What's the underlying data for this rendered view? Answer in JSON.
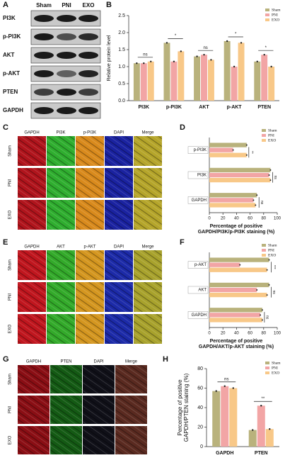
{
  "panel_labels": [
    "A",
    "B",
    "C",
    "D",
    "E",
    "F",
    "G",
    "H"
  ],
  "blot": {
    "lanes": [
      "Sham",
      "PNI",
      "EXO"
    ],
    "rows": [
      "PI3K",
      "p-PI3K",
      "AKT",
      "p-AKT",
      "PTEN",
      "GAPDH"
    ]
  },
  "micro": [
    {
      "columns": [
        "GAPDH",
        "PI3K",
        "p-PI3K",
        "DAPI",
        "Merge"
      ],
      "rows": [
        "Sham",
        "PNI",
        "EXO"
      ]
    },
    {
      "columns": [
        "GAPDH",
        "AKT",
        "p-AKT",
        "DAPI",
        "Merge"
      ],
      "rows": [
        "Sham",
        "PNI",
        "EXO"
      ]
    },
    {
      "columns": [
        "GAPDH",
        "PTEN",
        "DAPI",
        "Merge"
      ],
      "rows": [
        "Sham",
        "PNI",
        "EXO"
      ]
    }
  ],
  "chart_data": [
    {
      "type": "bar",
      "ylabel": [
        "Relative protein level"
      ],
      "categories": [
        "PI3K",
        "p-PI3K",
        "AKT",
        "p-AKT",
        "PTEN"
      ],
      "series": [
        {
          "name": "Sham",
          "color": "#b9b27c",
          "values": [
            1.1,
            1.7,
            1.3,
            1.75,
            1.15
          ]
        },
        {
          "name": "PNI",
          "color": "#f2a5a5",
          "values": [
            1.1,
            1.15,
            1.35,
            1.0,
            1.35
          ]
        },
        {
          "name": "EXO",
          "color": "#f8c888",
          "values": [
            1.15,
            1.45,
            1.2,
            1.7,
            1.0
          ]
        }
      ],
      "annotations": [
        "ns",
        "*",
        "ns",
        "*",
        "*"
      ],
      "ylim": [
        0,
        2.5
      ],
      "yticks": [
        {
          "value": 0,
          "label": "0.0"
        },
        0.5,
        {
          "value": 1,
          "label": "1.0"
        },
        1.5,
        {
          "value": 2,
          "label": "2.0"
        },
        2.5
      ]
    },
    {
      "type": "barh",
      "xlabel": [
        "Percentage of positive",
        "GAPDH/PI3K/p-PI3K staining (%)"
      ],
      "categories": [
        "p-PI3K",
        "PI3K",
        "GAPDH"
      ],
      "series": [
        {
          "name": "Sham",
          "color": "#b9b27c",
          "values": [
            55,
            90,
            70
          ]
        },
        {
          "name": "PNI",
          "color": "#f2a5a5",
          "values": [
            35,
            88,
            65
          ]
        },
        {
          "name": "EXO",
          "color": "#f8c888",
          "values": [
            55,
            90,
            68
          ]
        }
      ],
      "annotations": [
        "**",
        "ns",
        "ns"
      ],
      "xlim": [
        0,
        100
      ],
      "xticks": [
        0,
        20,
        40,
        60,
        80,
        100
      ]
    },
    {
      "type": "barh",
      "xlabel": [
        "Percentage of positive",
        "GAPDH/AKT/p-AKT staining (%)"
      ],
      "categories": [
        "p-AKT",
        "AKT",
        "GAPDH"
      ],
      "series": [
        {
          "name": "Sham",
          "color": "#b9b27c",
          "values": [
            88,
            88,
            78
          ]
        },
        {
          "name": "PNI",
          "color": "#f2a5a5",
          "values": [
            45,
            70,
            75
          ]
        },
        {
          "name": "EXO",
          "color": "#f8c888",
          "values": [
            85,
            85,
            78
          ]
        }
      ],
      "annotations": [
        "***",
        "ns",
        "ns"
      ],
      "xlim": [
        0,
        100
      ],
      "xticks": [
        0,
        20,
        40,
        60,
        80,
        100
      ]
    },
    {
      "type": "bar",
      "ylabel": [
        "Percentage of positive",
        "GAPDH/PTEN staining (%)"
      ],
      "categories": [
        "GAPDH",
        "PTEN"
      ],
      "series": [
        {
          "name": "Sham",
          "color": "#b9b27c",
          "values": [
            57,
            17
          ]
        },
        {
          "name": "PNI",
          "color": "#f2a5a5",
          "values": [
            62,
            42
          ]
        },
        {
          "name": "EXO",
          "color": "#f8c888",
          "values": [
            60,
            18
          ]
        }
      ],
      "annotations": [
        "ns",
        "**"
      ],
      "ylim": [
        0,
        80
      ],
      "yticks": [
        0,
        20,
        40,
        60,
        80
      ]
    }
  ]
}
